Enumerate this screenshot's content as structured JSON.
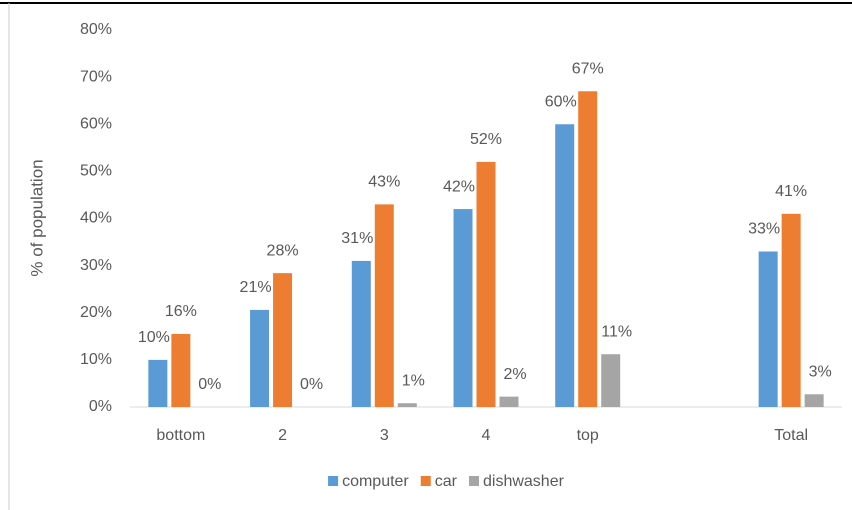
{
  "chart_data": {
    "type": "bar",
    "y_label": "% of population",
    "categories": [
      "bottom",
      "2",
      "3",
      "4",
      "top",
      null,
      "Total"
    ],
    "series": [
      {
        "name": "computer",
        "color": "#5b9bd5",
        "values": [
          10,
          20.6,
          31,
          42,
          60,
          null,
          33
        ],
        "value_labels": [
          "10%",
          "21%",
          "31%",
          "42%",
          "60%",
          null,
          "33%"
        ]
      },
      {
        "name": "car",
        "color": "#ed7d31",
        "values": [
          15.5,
          28.4,
          43,
          52,
          67,
          null,
          41
        ],
        "value_labels": [
          "16%",
          "28%",
          "43%",
          "52%",
          "67%",
          null,
          "41%"
        ]
      },
      {
        "name": "dishwasher",
        "color": "#a5a5a5",
        "values": [
          0,
          0,
          0.8,
          2.2,
          11.2,
          null,
          2.7
        ],
        "value_labels": [
          "0%",
          "0%",
          "1%",
          "2%",
          "11%",
          null,
          "3%"
        ]
      }
    ],
    "ylim": [
      0,
      80
    ],
    "yticks": [
      {
        "value": 0,
        "label": "0%"
      },
      {
        "value": 10,
        "label": "10%"
      },
      {
        "value": 20,
        "label": "20%"
      },
      {
        "value": 30,
        "label": "30%"
      },
      {
        "value": 40,
        "label": "40%"
      },
      {
        "value": 50,
        "label": "50%"
      },
      {
        "value": 60,
        "label": "60%"
      },
      {
        "value": 70,
        "label": "70%"
      },
      {
        "value": 80,
        "label": "80%"
      }
    ],
    "grid": false,
    "legend": "bottom"
  }
}
